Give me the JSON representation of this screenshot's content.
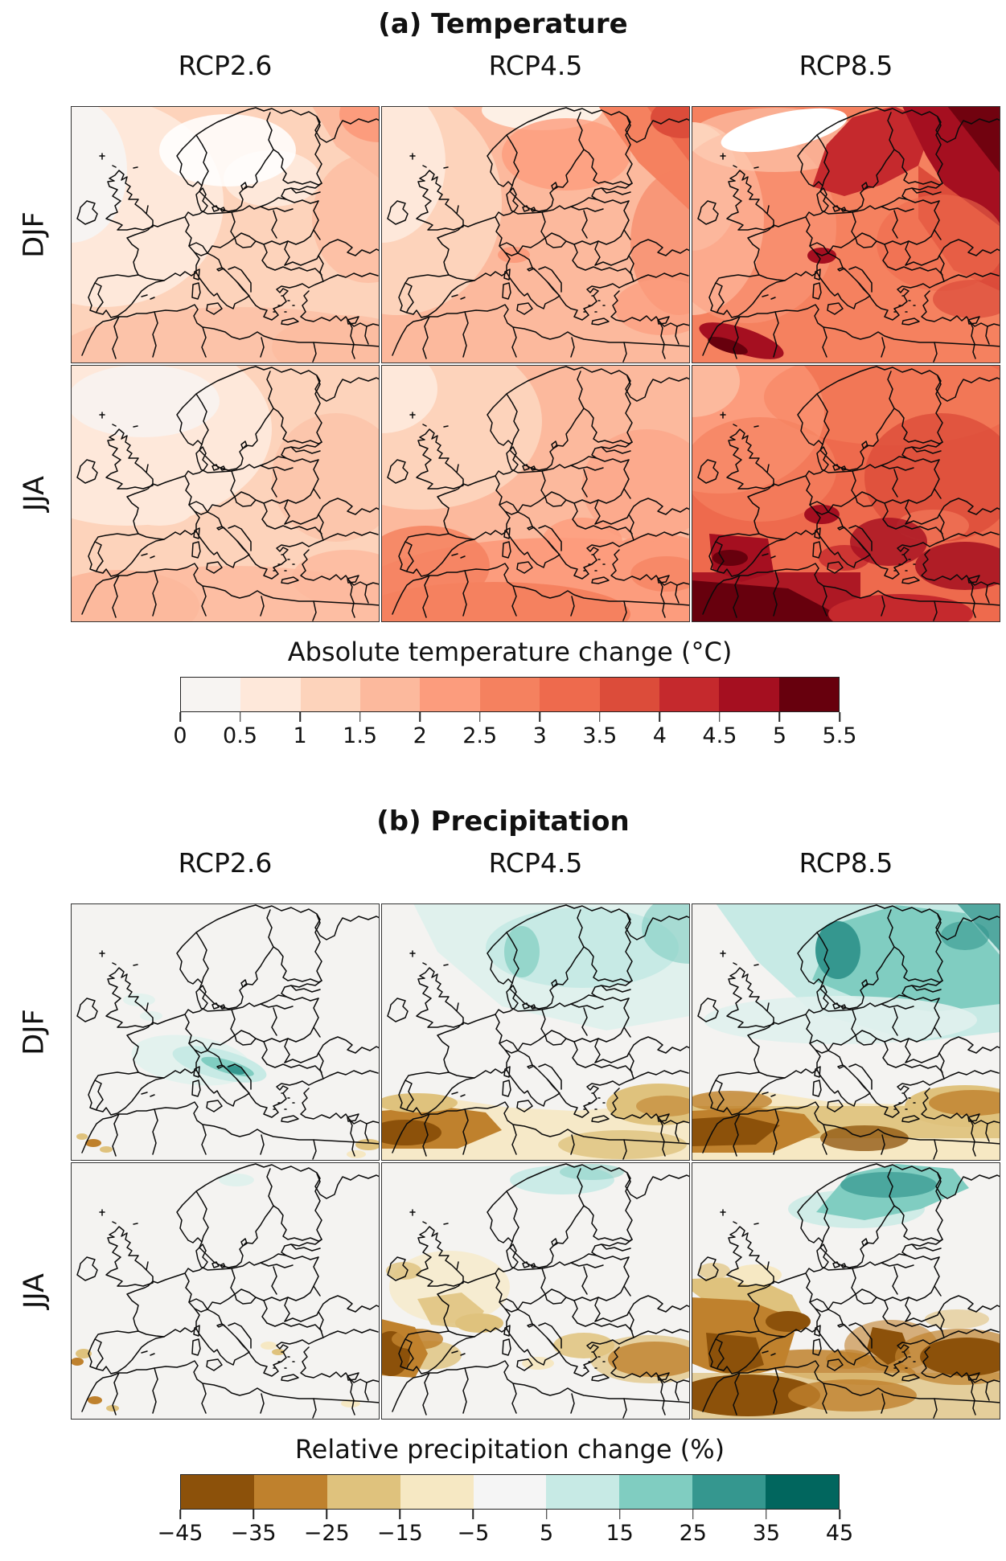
{
  "figure": {
    "temperature": {
      "title": "(a) Temperature",
      "columns": [
        "RCP2.6",
        "RCP4.5",
        "RCP8.5"
      ],
      "rows": [
        "DJF",
        "JJA"
      ],
      "colorbar": {
        "label": "Absolute temperature change (°C)",
        "ticks": [
          "0",
          "0.5",
          "1",
          "1.5",
          "2",
          "2.5",
          "3",
          "3.5",
          "4",
          "4.5",
          "5",
          "5.5"
        ],
        "colors": [
          "#f7f4f2",
          "#fee8da",
          "#fdd3bb",
          "#fcb99d",
          "#fc9c7d",
          "#f5815f",
          "#ee6a4d",
          "#dc4c3a",
          "#c5292d",
          "#a50f20",
          "#67000d"
        ]
      }
    },
    "precipitation": {
      "title": "(b) Precipitation",
      "columns": [
        "RCP2.6",
        "RCP4.5",
        "RCP8.5"
      ],
      "rows": [
        "DJF",
        "JJA"
      ],
      "colorbar": {
        "label": "Relative precipitation change (%)",
        "ticks": [
          "−45",
          "−35",
          "−25",
          "−15",
          "−5",
          "5",
          "15",
          "25",
          "35",
          "45"
        ],
        "colors": [
          "#8c510a",
          "#bf812d",
          "#dfc27d",
          "#f6e8c3",
          "#f5f5f5",
          "#c7eae5",
          "#80cdc1",
          "#35978f",
          "#01665e"
        ]
      }
    }
  },
  "chart_data": [
    {
      "type": "heatmap",
      "title": "(a) Temperature",
      "variable": "Absolute temperature change (°C)",
      "region": "Europe and Mediterranean (map contour panels)",
      "columns": [
        "RCP2.6",
        "RCP4.5",
        "RCP8.5"
      ],
      "rows": [
        "DJF",
        "JJA"
      ],
      "colormap": "Reds, 11 discrete classes",
      "colorbar_ticks": [
        0,
        0.5,
        1,
        1.5,
        2,
        2.5,
        3,
        3.5,
        4,
        4.5,
        5,
        5.5
      ],
      "legend_position": "bottom",
      "panel_summaries": {
        "DJF RCP2.6": "Mostly 0.5-1.5 °C warming; near 0 over Norwegian Sea/Scandinavia coast; up to 2-2.5 °C in far northeast",
        "DJF RCP4.5": "Mostly 1.5-2.5 °C; 3-4 °C in northeast Europe/Russia",
        "DJF RCP8.5": "2.5-3.5 °C over west/south; 4-5.5 °C over Scandinavia and northeast Russia; near-0 patch over Norwegian Sea; local maxima over Alps and Atlas",
        "JJA RCP2.6": "0.5-1.5 °C; lightest over northwest Atlantic sector",
        "JJA RCP4.5": "1.5-2.5 °C; 2.5-3 °C over Iberia, North Africa and southeast",
        "JJA RCP8.5": "3-4 °C widely; 4.5-5.5 °C over Iberia, North Africa, Alps, Balkans and Turkey; lighter (2-3 °C) northwest Atlantic"
      },
      "approx_value_range_by_panel": {
        "DJF RCP2.6": [
          0,
          2.5
        ],
        "DJF RCP4.5": [
          0.5,
          4
        ],
        "DJF RCP8.5": [
          0,
          5.5
        ],
        "JJA RCP2.6": [
          0,
          2
        ],
        "JJA RCP4.5": [
          1,
          3
        ],
        "JJA RCP8.5": [
          2,
          5.5
        ]
      }
    },
    {
      "type": "heatmap",
      "title": "(b) Precipitation",
      "variable": "Relative precipitation change (%)",
      "region": "Europe and Mediterranean (map contour panels)",
      "columns": [
        "RCP2.6",
        "RCP4.5",
        "RCP8.5"
      ],
      "rows": [
        "DJF",
        "JJA"
      ],
      "colormap": "BrBG (brown-white-teal), 9 discrete classes",
      "colorbar_ticks": [
        -45,
        -35,
        -25,
        -15,
        -5,
        5,
        15,
        25,
        35,
        45
      ],
      "legend_position": "bottom",
      "panel_summaries": {
        "DJF RCP2.6": "Mostly within ±5%; +5 to +15% streak over Alps/Dinaric Alps; small -5 to -15% specks over Morocco",
        "DJF RCP4.5": "+5 to +15% over northern Europe/Scandinavia; -15 to -35% over Morocco/Algeria and southern Iberia; -5 to -15% over Turkey",
        "DJF RCP8.5": "+15 to +25% over Scandinavia and northeast Europe; -25 to -45% over northwest Africa; -15 to -25% across Mediterranean and Turkey",
        "JJA RCP2.6": "Near zero everywhere; isolated -5 to -15% specks near west Iberia and Morocco",
        "JJA RCP4.5": "-25 to -45% west of Iberia/north Portugal; -5 to -15% over France, Ireland, Balkans; -15 to -25% over Turkey; weak +5% far northern Scandinavia",
        "JJA RCP8.5": "-35 to -45% over Iberia, southern France, Mediterranean, Balkans and Turkey; -15 to -25% over wider western/southern Europe; +5 to +15% over northern Scandinavia"
      },
      "approx_value_range_by_panel": {
        "DJF RCP2.6": [
          -15,
          15
        ],
        "DJF RCP4.5": [
          -35,
          15
        ],
        "DJF RCP8.5": [
          -45,
          35
        ],
        "JJA RCP2.6": [
          -15,
          5
        ],
        "JJA RCP4.5": [
          -45,
          15
        ],
        "JJA RCP8.5": [
          -45,
          25
        ]
      }
    }
  ]
}
